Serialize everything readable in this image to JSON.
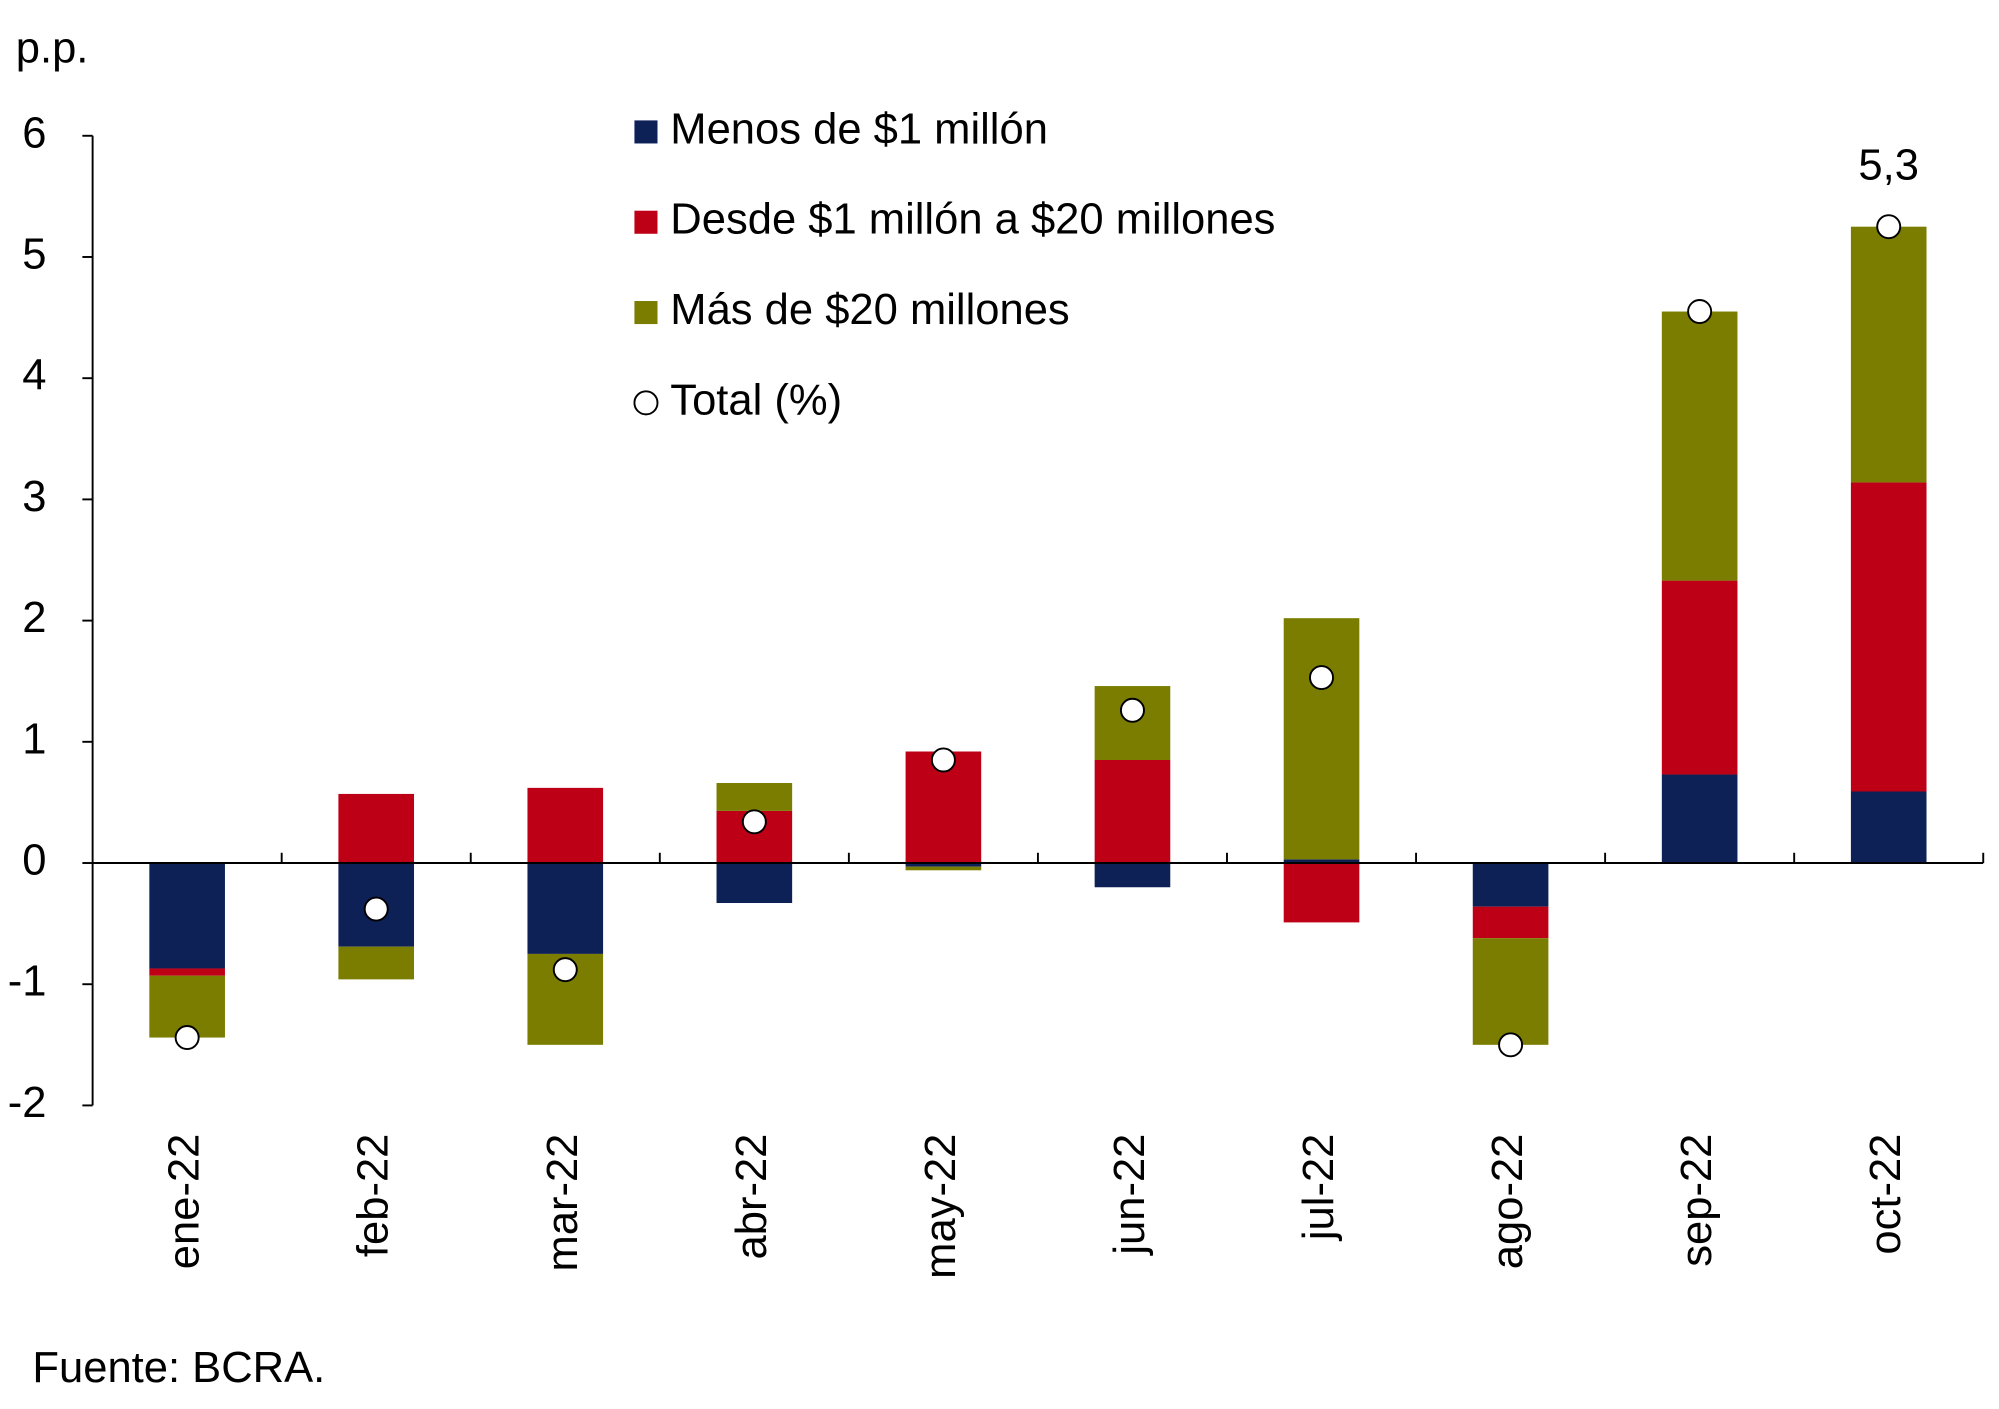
{
  "chart_data": {
    "type": "stacked-bar",
    "y_label": "p.p.",
    "source": "Fuente: BCRA.",
    "categories": [
      "ene-22",
      "feb-22",
      "mar-22",
      "abr-22",
      "may-22",
      "jun-22",
      "jul-22",
      "ago-22",
      "sep-22",
      "oct-22"
    ],
    "series": [
      {
        "name": "Menos de $1 millón",
        "color": "#0e2157",
        "values": [
          -0.87,
          -0.69,
          -0.75,
          -0.33,
          -0.03,
          -0.2,
          0.03,
          -0.36,
          0.73,
          0.59
        ]
      },
      {
        "name": "Desde $1 millón a $20 millones",
        "color": "#be0016",
        "values": [
          -0.06,
          0.57,
          0.62,
          0.43,
          0.92,
          0.85,
          -0.49,
          -0.26,
          1.6,
          2.55
        ]
      },
      {
        "name": "Más de $20 millones",
        "color": "#7a7d00",
        "values": [
          -0.51,
          -0.27,
          -0.75,
          0.23,
          -0.03,
          0.61,
          1.99,
          -0.88,
          2.22,
          2.11
        ]
      }
    ],
    "total": {
      "name": "Total (%)",
      "color": "#ffffff",
      "values": [
        -1.44,
        -0.38,
        -0.88,
        0.34,
        0.85,
        1.26,
        1.53,
        -1.5,
        4.55,
        5.25
      ],
      "value_labels": [
        null,
        null,
        null,
        null,
        null,
        null,
        null,
        null,
        null,
        "5,3"
      ]
    },
    "ylim": [
      -2,
      6
    ],
    "yticks": [
      -2,
      -1,
      0,
      1,
      2,
      3,
      4,
      5,
      6
    ]
  }
}
